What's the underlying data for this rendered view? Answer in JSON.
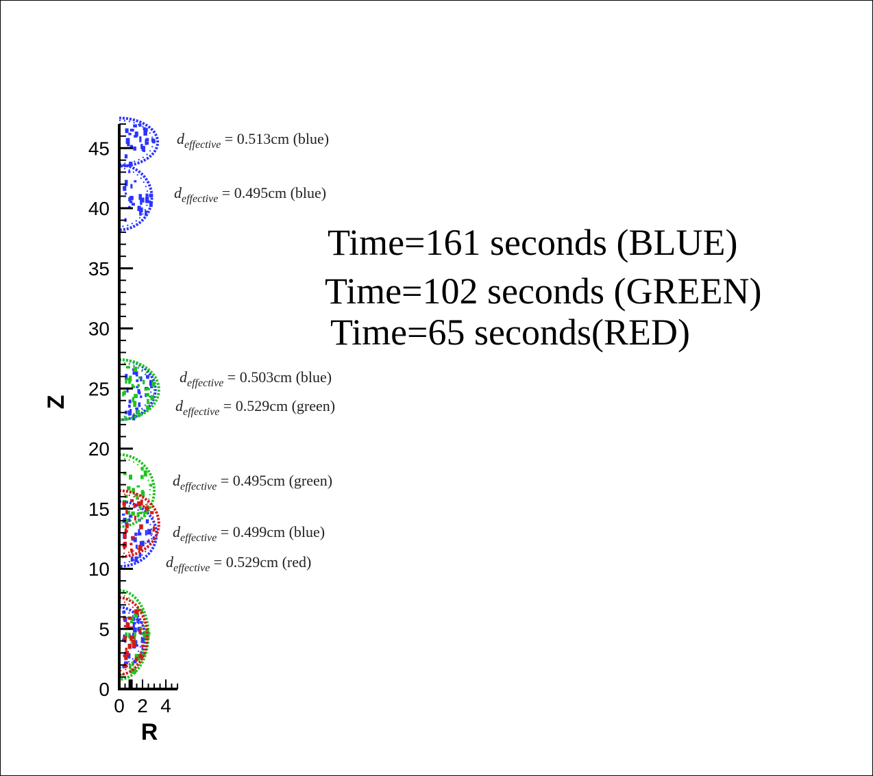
{
  "chart_data": {
    "type": "scatter",
    "title": "",
    "xlabel": "R",
    "ylabel": "Z",
    "xlim": [
      0,
      5
    ],
    "ylim": [
      0,
      47
    ],
    "x_ticks": [
      "0",
      "2",
      "4"
    ],
    "y_ticks": [
      "0",
      "5",
      "10",
      "15",
      "20",
      "25",
      "30",
      "35",
      "40",
      "45"
    ],
    "time_labels": [
      "Time=161 seconds (BLUE)",
      "Time=102 seconds (GREEN)",
      "Time=65 seconds(RED)"
    ],
    "annotations": [
      {
        "value": "0.513cm",
        "color_word": "blue"
      },
      {
        "value": "0.495cm",
        "color_word": "blue"
      },
      {
        "value": "0.503cm",
        "color_word": "blue"
      },
      {
        "value": "0.529cm",
        "color_word": "green"
      },
      {
        "value": "0.495cm",
        "color_word": "green"
      },
      {
        "value": "0.499cm",
        "color_word": "blue"
      },
      {
        "value": "0.529cm",
        "color_word": "red"
      }
    ],
    "annotation_symbol": "d",
    "annotation_subscript": "effective",
    "series": [
      {
        "color": "#2b35ff",
        "bubbles": [
          {
            "zmin": 43.5,
            "zmax": 47.5,
            "rmax": 3.3
          },
          {
            "zmin": 38.2,
            "zmax": 43.6,
            "rmax": 2.8
          },
          {
            "zmin": 22.4,
            "zmax": 27.4,
            "rmax": 3.1
          },
          {
            "zmin": 10.2,
            "zmax": 15.6,
            "rmax": 3.2
          },
          {
            "zmin": 1.8,
            "zmax": 6.8,
            "rmax": 2.2
          }
        ]
      },
      {
        "color": "#1fc41f",
        "bubbles": [
          {
            "zmin": 22.4,
            "zmax": 27.4,
            "rmax": 3.4
          },
          {
            "zmin": 13.5,
            "zmax": 19.5,
            "rmax": 3.0
          },
          {
            "zmin": 0.8,
            "zmax": 8.2,
            "rmax": 2.5
          }
        ]
      },
      {
        "color": "#d21a1a",
        "bubbles": [
          {
            "zmin": 11.0,
            "zmax": 16.5,
            "rmax": 3.4
          },
          {
            "zmin": 1.2,
            "zmax": 7.6,
            "rmax": 2.4
          }
        ]
      }
    ]
  }
}
